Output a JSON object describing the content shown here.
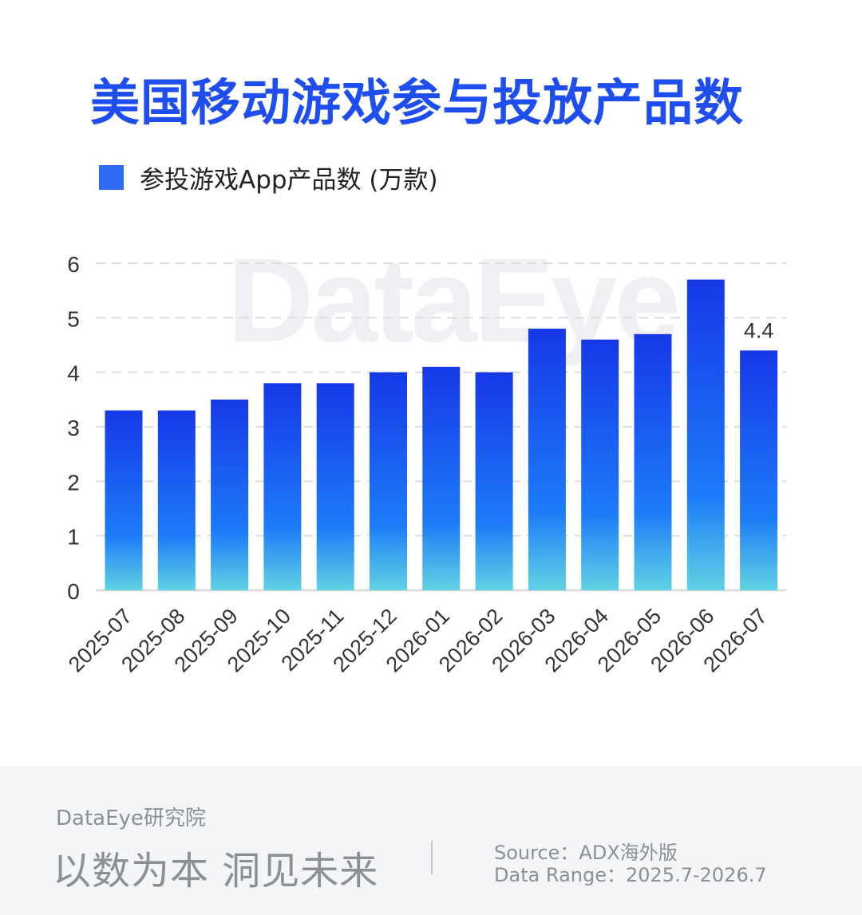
{
  "title": "美国移动游戏参与投放产品数",
  "legend": {
    "label": "参投游戏App产品数 (万款)",
    "color": "#2f6bf5"
  },
  "watermark": "DataEye",
  "colors": {
    "title": "#1f4ef0",
    "bar_top": "#1638e8",
    "bar_mid": "#1d7cf8",
    "bar_bottom": "#5fd3e4",
    "grid": "#dddddd",
    "axis": "#dddddd"
  },
  "chart_data": {
    "type": "bar",
    "categories": [
      "2025-07",
      "2025-08",
      "2025-09",
      "2025-10",
      "2025-11",
      "2025-12",
      "2026-01",
      "2026-02",
      "2026-03",
      "2026-04",
      "2026-05",
      "2026-06",
      "2026-07"
    ],
    "series": [
      {
        "name": "参投游戏App产品数 (万款)",
        "values": [
          3.3,
          3.3,
          3.5,
          3.8,
          3.8,
          4.0,
          4.1,
          4.0,
          4.8,
          4.6,
          4.7,
          5.7,
          4.4
        ]
      }
    ],
    "y_ticks": [
      0,
      1,
      2,
      3,
      4,
      5,
      6
    ],
    "ylim": [
      0,
      6
    ],
    "grid": true,
    "legend_position": "top-left",
    "data_labels": [
      {
        "index": 12,
        "text": "4.4"
      }
    ]
  },
  "footer": {
    "brand": "DataEye研究院",
    "slogan": "以数为本 洞见未来",
    "source": "Source：ADX海外版",
    "range": "Data Range：2025.7-2026.7"
  }
}
